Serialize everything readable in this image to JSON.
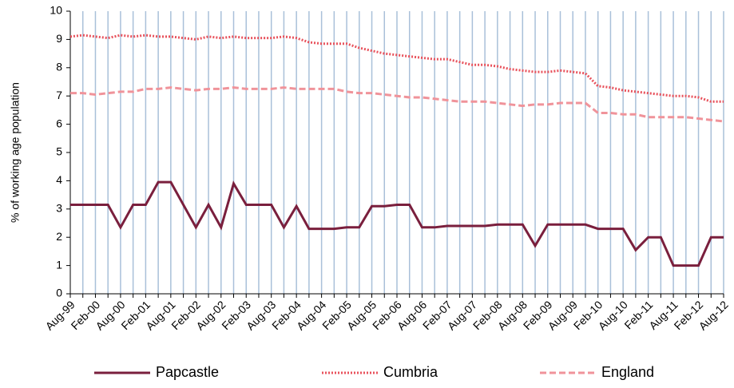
{
  "chart_data": {
    "type": "line",
    "y_label": "% of working age population",
    "categories": [
      "Aug-99",
      null,
      "Feb-00",
      null,
      "Aug-00",
      null,
      "Feb-01",
      null,
      "Aug-01",
      null,
      "Feb-02",
      null,
      "Aug-02",
      null,
      "Feb-03",
      null,
      "Aug-03",
      null,
      "Feb-04",
      null,
      "Aug-04",
      null,
      "Feb-05",
      null,
      "Aug-05",
      null,
      "Feb-06",
      null,
      "Aug-06",
      null,
      "Feb-07",
      null,
      "Aug-07",
      null,
      "Feb-08",
      null,
      "Aug-08",
      null,
      "Feb-09",
      null,
      "Aug-09",
      null,
      "Feb-10",
      null,
      "Aug-10",
      null,
      "Feb-11",
      null,
      "Aug-11",
      null,
      "Feb-12",
      null,
      "Aug-12"
    ],
    "series": [
      {
        "name": "Papcastle",
        "color": "#7a1f3d",
        "dash": "solid",
        "values": [
          3.15,
          3.15,
          3.15,
          3.15,
          2.35,
          3.15,
          3.15,
          3.95,
          3.95,
          3.15,
          2.35,
          3.15,
          2.35,
          3.9,
          3.15,
          3.15,
          3.15,
          2.35,
          3.1,
          2.3,
          2.3,
          2.3,
          2.35,
          2.35,
          3.1,
          3.1,
          3.15,
          3.15,
          2.35,
          2.35,
          2.4,
          2.4,
          2.4,
          2.4,
          2.45,
          2.45,
          2.45,
          1.7,
          2.45,
          2.45,
          2.45,
          2.45,
          2.3,
          2.3,
          2.3,
          1.55,
          2.0,
          2.0,
          1.0,
          1.0,
          1.0,
          2.0,
          2.0
        ]
      },
      {
        "name": "Cumbria",
        "color": "#e8525c",
        "dash": "dotted",
        "values": [
          9.1,
          9.15,
          9.1,
          9.05,
          9.15,
          9.1,
          9.15,
          9.1,
          9.1,
          9.05,
          9.0,
          9.1,
          9.05,
          9.1,
          9.05,
          9.05,
          9.05,
          9.1,
          9.05,
          8.9,
          8.85,
          8.85,
          8.85,
          8.7,
          8.6,
          8.5,
          8.45,
          8.4,
          8.35,
          8.3,
          8.3,
          8.2,
          8.1,
          8.1,
          8.05,
          7.95,
          7.9,
          7.85,
          7.85,
          7.9,
          7.85,
          7.8,
          7.35,
          7.3,
          7.2,
          7.15,
          7.1,
          7.05,
          7.0,
          7.0,
          6.95,
          6.8,
          6.8
        ]
      },
      {
        "name": "England",
        "color": "#f0939a",
        "dash": "dashed",
        "values": [
          7.1,
          7.1,
          7.05,
          7.1,
          7.15,
          7.15,
          7.25,
          7.25,
          7.3,
          7.25,
          7.2,
          7.25,
          7.25,
          7.3,
          7.25,
          7.25,
          7.25,
          7.3,
          7.25,
          7.25,
          7.25,
          7.25,
          7.15,
          7.1,
          7.1,
          7.05,
          7.0,
          6.95,
          6.95,
          6.9,
          6.85,
          6.8,
          6.8,
          6.8,
          6.75,
          6.7,
          6.65,
          6.7,
          6.7,
          6.75,
          6.75,
          6.75,
          6.4,
          6.4,
          6.35,
          6.35,
          6.25,
          6.25,
          6.25,
          6.25,
          6.2,
          6.15,
          6.1
        ]
      }
    ],
    "ylim": [
      0,
      10
    ],
    "yticks": [
      0,
      1,
      2,
      3,
      4,
      5,
      6,
      7,
      8,
      9,
      10
    ],
    "grid_x": true,
    "grid_color": "#a9c0d9",
    "legend": "bottom"
  }
}
